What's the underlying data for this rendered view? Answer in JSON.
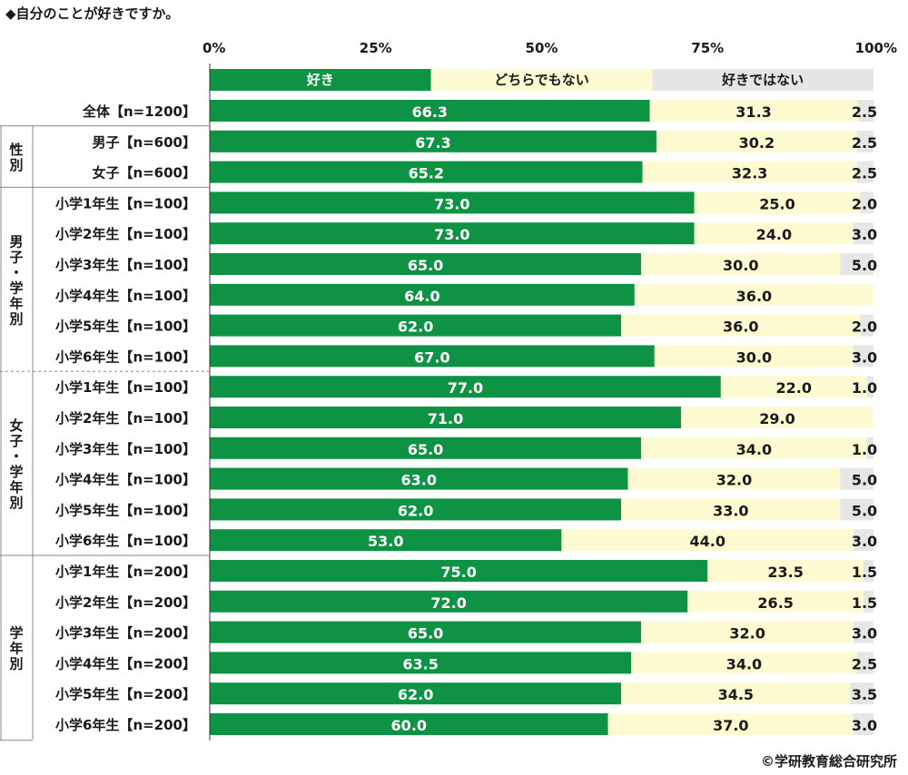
{
  "title": "◆自分のことが好きですか。",
  "credit": "©学研教育総合研究所",
  "colors": {
    "like": "#0e9345",
    "neutral": "#fefbd2",
    "dislike": "#e6e6e6"
  },
  "chart_data": {
    "type": "bar",
    "stacked": true,
    "orientation": "horizontal",
    "xlim": [
      0,
      100
    ],
    "x_ticks": [
      "0%",
      "25%",
      "50%",
      "75%",
      "100%"
    ],
    "series": [
      {
        "name": "好き",
        "color": "#0e9345"
      },
      {
        "name": "どちらでもない",
        "color": "#fefbd2"
      },
      {
        "name": "好きではない",
        "color": "#e6e6e6"
      }
    ],
    "groups": [
      {
        "label": "",
        "rows": [
          {
            "label": "全体【n=1200】",
            "values": [
              66.3,
              31.3,
              2.5
            ],
            "labels": [
              "66.3",
              "31.3",
              "2.5"
            ]
          }
        ]
      },
      {
        "label": "性別",
        "rows": [
          {
            "label": "男子【n=600】",
            "values": [
              67.3,
              30.2,
              2.5
            ],
            "labels": [
              "67.3",
              "30.2",
              "2.5"
            ]
          },
          {
            "label": "女子【n=600】",
            "values": [
              65.2,
              32.3,
              2.5
            ],
            "labels": [
              "65.2",
              "32.3",
              "2.5"
            ]
          }
        ]
      },
      {
        "label": "男子・学年別",
        "rows": [
          {
            "label": "小学1年生【n=100】",
            "values": [
              73.0,
              25.0,
              2.0
            ],
            "labels": [
              "73.0",
              "25.0",
              "2.0"
            ]
          },
          {
            "label": "小学2年生【n=100】",
            "values": [
              73.0,
              24.0,
              3.0
            ],
            "labels": [
              "73.0",
              "24.0",
              "3.0"
            ]
          },
          {
            "label": "小学3年生【n=100】",
            "values": [
              65.0,
              30.0,
              5.0
            ],
            "labels": [
              "65.0",
              "30.0",
              "5.0"
            ]
          },
          {
            "label": "小学4年生【n=100】",
            "values": [
              64.0,
              36.0,
              0
            ],
            "labels": [
              "64.0",
              "36.0",
              ""
            ]
          },
          {
            "label": "小学5年生【n=100】",
            "values": [
              62.0,
              36.0,
              2.0
            ],
            "labels": [
              "62.0",
              "36.0",
              "2.0"
            ]
          },
          {
            "label": "小学6年生【n=100】",
            "values": [
              67.0,
              30.0,
              3.0
            ],
            "labels": [
              "67.0",
              "30.0",
              "3.0"
            ]
          }
        ]
      },
      {
        "label": "女子・学年別",
        "rows": [
          {
            "label": "小学1年生【n=100】",
            "values": [
              77.0,
              22.0,
              1.0
            ],
            "labels": [
              "77.0",
              "22.0",
              "1.0"
            ]
          },
          {
            "label": "小学2年生【n=100】",
            "values": [
              71.0,
              29.0,
              0
            ],
            "labels": [
              "71.0",
              "29.0",
              ""
            ]
          },
          {
            "label": "小学3年生【n=100】",
            "values": [
              65.0,
              34.0,
              1.0
            ],
            "labels": [
              "65.0",
              "34.0",
              "1.0"
            ]
          },
          {
            "label": "小学4年生【n=100】",
            "values": [
              63.0,
              32.0,
              5.0
            ],
            "labels": [
              "63.0",
              "32.0",
              "5.0"
            ]
          },
          {
            "label": "小学5年生【n=100】",
            "values": [
              62.0,
              33.0,
              5.0
            ],
            "labels": [
              "62.0",
              "33.0",
              "5.0"
            ]
          },
          {
            "label": "小学6年生【n=100】",
            "values": [
              53.0,
              44.0,
              3.0
            ],
            "labels": [
              "53.0",
              "44.0",
              "3.0"
            ]
          }
        ]
      },
      {
        "label": "学年別",
        "rows": [
          {
            "label": "小学1年生【n=200】",
            "values": [
              75.0,
              23.5,
              1.5
            ],
            "labels": [
              "75.0",
              "23.5",
              "1.5"
            ]
          },
          {
            "label": "小学2年生【n=200】",
            "values": [
              72.0,
              26.5,
              1.5
            ],
            "labels": [
              "72.0",
              "26.5",
              "1.5"
            ]
          },
          {
            "label": "小学3年生【n=200】",
            "values": [
              65.0,
              32.0,
              3.0
            ],
            "labels": [
              "65.0",
              "32.0",
              "3.0"
            ]
          },
          {
            "label": "小学4年生【n=200】",
            "values": [
              63.5,
              34.0,
              2.5
            ],
            "labels": [
              "63.5",
              "34.0",
              "2.5"
            ]
          },
          {
            "label": "小学5年生【n=200】",
            "values": [
              62.0,
              34.5,
              3.5
            ],
            "labels": [
              "62.0",
              "34.5",
              "3.5"
            ]
          },
          {
            "label": "小学6年生【n=200】",
            "values": [
              60.0,
              37.0,
              3.0
            ],
            "labels": [
              "60.0",
              "37.0",
              "3.0"
            ]
          }
        ]
      }
    ]
  }
}
